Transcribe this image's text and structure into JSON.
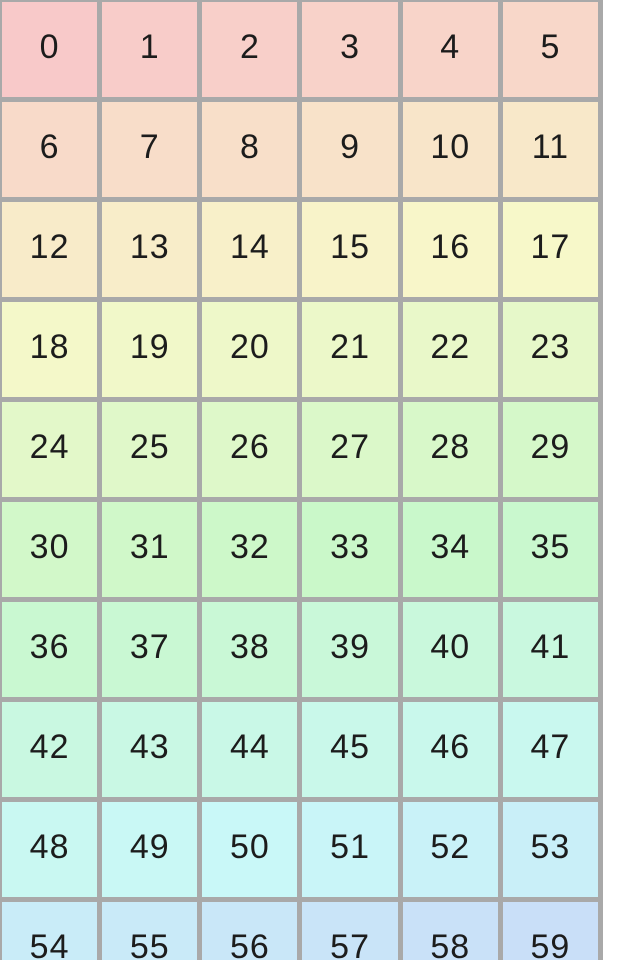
{
  "page": {
    "background_color": "#ffffff"
  },
  "grid": {
    "columns": 6,
    "rows": 10,
    "border_color": "#a9a9a9",
    "text_color": "#1c1c1c",
    "cells": [
      {
        "value": "0",
        "color": "#f8c9c9"
      },
      {
        "value": "1",
        "color": "#f8ccc9"
      },
      {
        "value": "2",
        "color": "#f8cfc9"
      },
      {
        "value": "3",
        "color": "#f8d2c9"
      },
      {
        "value": "4",
        "color": "#f8d4c9"
      },
      {
        "value": "5",
        "color": "#f8d7c9"
      },
      {
        "value": "6",
        "color": "#f8dac9"
      },
      {
        "value": "7",
        "color": "#f8ddc9"
      },
      {
        "value": "8",
        "color": "#f8dfc9"
      },
      {
        "value": "9",
        "color": "#f8e2c9"
      },
      {
        "value": "10",
        "color": "#f8e5c9"
      },
      {
        "value": "11",
        "color": "#f8e8c9"
      },
      {
        "value": "12",
        "color": "#f8ebc9"
      },
      {
        "value": "13",
        "color": "#f8edc9"
      },
      {
        "value": "14",
        "color": "#f8f0c9"
      },
      {
        "value": "15",
        "color": "#f8f3c9"
      },
      {
        "value": "16",
        "color": "#f8f6c9"
      },
      {
        "value": "17",
        "color": "#f7f8c9"
      },
      {
        "value": "18",
        "color": "#f4f8c9"
      },
      {
        "value": "19",
        "color": "#f1f8c9"
      },
      {
        "value": "20",
        "color": "#eef8c9"
      },
      {
        "value": "21",
        "color": "#ecf8c9"
      },
      {
        "value": "22",
        "color": "#e9f8c9"
      },
      {
        "value": "23",
        "color": "#e6f8c9"
      },
      {
        "value": "24",
        "color": "#e3f8c9"
      },
      {
        "value": "25",
        "color": "#e0f8c9"
      },
      {
        "value": "26",
        "color": "#def8c9"
      },
      {
        "value": "27",
        "color": "#dbf8c9"
      },
      {
        "value": "28",
        "color": "#d8f8c9"
      },
      {
        "value": "29",
        "color": "#d5f8c9"
      },
      {
        "value": "30",
        "color": "#d2f8c9"
      },
      {
        "value": "31",
        "color": "#d0f8c9"
      },
      {
        "value": "32",
        "color": "#cdf8c9"
      },
      {
        "value": "33",
        "color": "#caf8c9"
      },
      {
        "value": "34",
        "color": "#c9f8cb"
      },
      {
        "value": "35",
        "color": "#c9f8ce"
      },
      {
        "value": "36",
        "color": "#c9f8d1"
      },
      {
        "value": "37",
        "color": "#c9f8d3"
      },
      {
        "value": "38",
        "color": "#c9f8d6"
      },
      {
        "value": "39",
        "color": "#c9f8d9"
      },
      {
        "value": "40",
        "color": "#c9f8dc"
      },
      {
        "value": "41",
        "color": "#c9f8df"
      },
      {
        "value": "42",
        "color": "#c9f8e1"
      },
      {
        "value": "43",
        "color": "#c9f8e4"
      },
      {
        "value": "44",
        "color": "#c9f8e7"
      },
      {
        "value": "45",
        "color": "#c9f8ea"
      },
      {
        "value": "46",
        "color": "#c9f8ec"
      },
      {
        "value": "47",
        "color": "#c9f8ef"
      },
      {
        "value": "48",
        "color": "#c9f8f2"
      },
      {
        "value": "49",
        "color": "#c9f8f5"
      },
      {
        "value": "50",
        "color": "#c9f8f8"
      },
      {
        "value": "51",
        "color": "#c9f5f8"
      },
      {
        "value": "52",
        "color": "#c9f2f8"
      },
      {
        "value": "53",
        "color": "#c9eff8"
      },
      {
        "value": "54",
        "color": "#c9ecf8"
      },
      {
        "value": "55",
        "color": "#c9eaf8"
      },
      {
        "value": "56",
        "color": "#c9e7f8"
      },
      {
        "value": "57",
        "color": "#c9e4f8"
      },
      {
        "value": "58",
        "color": "#c9e1f8"
      },
      {
        "value": "59",
        "color": "#c9dff8"
      }
    ]
  }
}
